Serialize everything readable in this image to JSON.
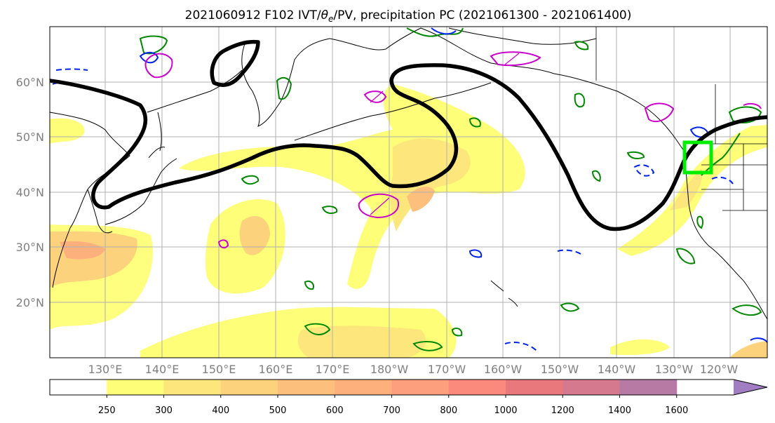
{
  "title": {
    "prefix": "2021060912 F102 IVT/",
    "theta": "θ",
    "theta_sub": "e",
    "suffix": "/PV, precipitation PC (2021061300 - 2021061400)"
  },
  "latitude_labels": [
    "60°N",
    "50°N",
    "40°N",
    "30°N",
    "20°N"
  ],
  "longitude_labels": [
    "130°E",
    "140°E",
    "150°E",
    "160°E",
    "170°E",
    "180°W",
    "170°W",
    "160°W",
    "150°W",
    "140°W",
    "130°W",
    "120°W"
  ],
  "colorbar": {
    "ticks": [
      "250",
      "300",
      "400",
      "500",
      "600",
      "700",
      "800",
      "1000",
      "1200",
      "1400",
      "1600"
    ],
    "colors": [
      "#ffffff",
      "#fefe78",
      "#fde77c",
      "#fdd27c",
      "#fdbf7c",
      "#fdb07c",
      "#fd9e7c",
      "#fb8a7c",
      "#e9787c",
      "#d57a8e",
      "#b67aa4",
      "#a17ec4"
    ],
    "extend": "max"
  },
  "colors": {
    "jet_contour": "#000000",
    "highlight_box": "#00ee00",
    "green_contour": "#008800",
    "blue_contour": "#0022ee",
    "magenta_contour": "#cc00cc",
    "grid": "#b0b0b0",
    "label": "#7f7f7f"
  }
}
